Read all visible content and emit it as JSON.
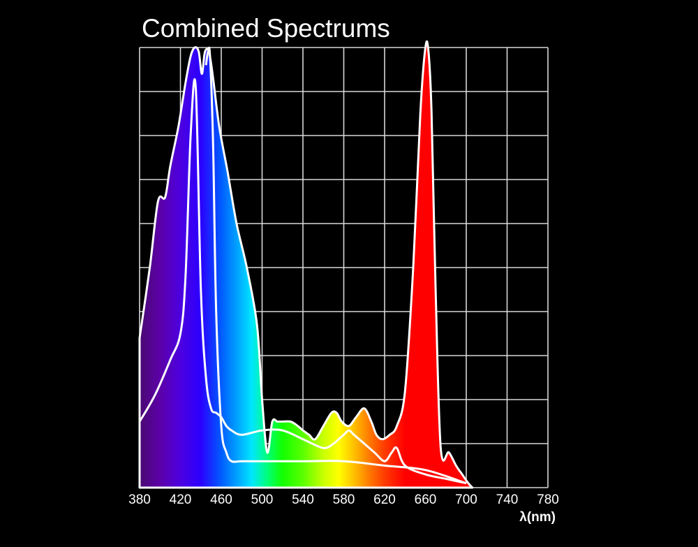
{
  "chart_data": {
    "type": "area",
    "title": "Combined Spectrums",
    "xlabel": "λ(nm)",
    "ylabel": "",
    "xlim": [
      380,
      780
    ],
    "ylim": [
      0,
      100
    ],
    "x_ticks": [
      "380",
      "420",
      "460",
      "500",
      "540",
      "580",
      "620",
      "660",
      "700",
      "740",
      "780"
    ],
    "grid": true,
    "legend": "none",
    "series": [
      {
        "x": [
          380,
          390,
          398,
          405,
          410,
          418,
          425,
          430,
          434,
          438,
          441,
          444,
          448,
          452,
          458,
          466,
          475,
          485,
          495,
          500,
          505,
          510,
          515,
          520,
          528,
          535,
          540,
          546,
          552,
          560,
          568,
          573,
          578,
          585,
          592,
          600,
          607,
          612,
          618,
          625,
          632,
          640,
          648,
          655,
          660,
          663,
          666,
          670,
          675,
          683,
          690,
          696,
          702,
          706
        ],
        "y": [
          34,
          50,
          65,
          66,
          73,
          82,
          92,
          98,
          100,
          99,
          94,
          99,
          99,
          93,
          82,
          72,
          60,
          50,
          37,
          20,
          8,
          15,
          15,
          15,
          15,
          14,
          13,
          12,
          11,
          14,
          17,
          17,
          15,
          14,
          16,
          18,
          15,
          12,
          11,
          12,
          14,
          22,
          50,
          85,
          100,
          99,
          85,
          45,
          9,
          8,
          5,
          3,
          1,
          0
        ]
      },
      {
        "x": [
          380,
          395,
          410,
          420,
          425,
          430,
          435,
          440,
          445,
          450,
          455,
          460,
          465,
          470,
          480,
          500,
          520,
          540,
          560,
          570,
          575,
          580,
          585,
          590,
          600,
          610,
          620,
          627,
          632,
          640,
          660,
          680,
          700
        ],
        "y": [
          15,
          21,
          29,
          35,
          48,
          80,
          91,
          45,
          25,
          18,
          17,
          16,
          14,
          13,
          12,
          13,
          13,
          11,
          9,
          10,
          11,
          12,
          13,
          12,
          10,
          8,
          6,
          8,
          9,
          5,
          3,
          2,
          1
        ]
      },
      {
        "x": [
          445,
          447,
          449,
          452,
          455,
          460,
          465,
          470,
          480,
          500,
          540,
          580,
          620,
          660,
          700
        ],
        "y": [
          96,
          99,
          98,
          78,
          40,
          14,
          8,
          6,
          6,
          6,
          6,
          6,
          5,
          4,
          1
        ]
      }
    ]
  }
}
